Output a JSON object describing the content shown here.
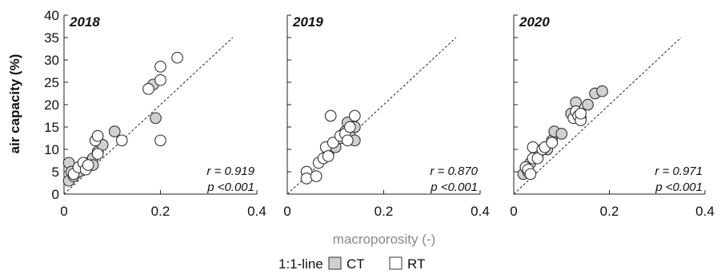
{
  "figure": {
    "ylabel": "air capacity (%)",
    "xlabel": "macroporosity (-)",
    "legend": {
      "line_label": "1:1-line",
      "items": [
        {
          "label": "CT",
          "fill": "#d0d0d0"
        },
        {
          "label": "RT",
          "fill": "#ffffff"
        }
      ]
    }
  },
  "chart_data": [
    {
      "type": "scatter",
      "title": "2018",
      "xlim": [
        0,
        0.4
      ],
      "ylim": [
        0,
        40
      ],
      "xticks": [
        "0",
        "0.2",
        "0.4"
      ],
      "yticks": [
        "0",
        "5",
        "10",
        "15",
        "20",
        "25",
        "30",
        "35",
        "40"
      ],
      "stat_r": "r = 0.919",
      "stat_p": "p <0.001",
      "series": [
        {
          "name": "CT",
          "points": [
            [
              0.01,
              7
            ],
            [
              0.01,
              3
            ],
            [
              0.02,
              4
            ],
            [
              0.015,
              5
            ],
            [
              0.03,
              5
            ],
            [
              0.04,
              6
            ],
            [
              0.05,
              7
            ],
            [
              0.06,
              8
            ],
            [
              0.07,
              9.5
            ],
            [
              0.08,
              11
            ],
            [
              0.105,
              14
            ],
            [
              0.185,
              24.5
            ],
            [
              0.19,
              17
            ],
            [
              0.06,
              6.5
            ]
          ]
        },
        {
          "name": "RT",
          "points": [
            [
              0.02,
              4.5
            ],
            [
              0.03,
              6
            ],
            [
              0.04,
              7
            ],
            [
              0.045,
              5.5
            ],
            [
              0.05,
              6.5
            ],
            [
              0.065,
              12
            ],
            [
              0.07,
              13
            ],
            [
              0.07,
              9
            ],
            [
              0.12,
              12
            ],
            [
              0.175,
              23.5
            ],
            [
              0.2,
              28.5
            ],
            [
              0.2,
              25.5
            ],
            [
              0.2,
              12
            ],
            [
              0.235,
              30.5
            ]
          ]
        }
      ]
    },
    {
      "type": "scatter",
      "title": "2019",
      "xlim": [
        0,
        0.4
      ],
      "ylim": [
        0,
        40
      ],
      "xticks": [
        "0",
        "0.2",
        "0.4"
      ],
      "yticks": [
        "0",
        "5",
        "10",
        "15",
        "20",
        "25",
        "30",
        "35",
        "40"
      ],
      "stat_r": "r = 0.870",
      "stat_p": "p <0.001",
      "series": [
        {
          "name": "CT",
          "points": [
            [
              0.085,
              9
            ],
            [
              0.1,
              10.5
            ],
            [
              0.11,
              12.5
            ],
            [
              0.12,
              14
            ],
            [
              0.125,
              16
            ],
            [
              0.13,
              13
            ],
            [
              0.14,
              15
            ],
            [
              0.14,
              12
            ]
          ]
        },
        {
          "name": "RT",
          "points": [
            [
              0.04,
              5
            ],
            [
              0.04,
              3.5
            ],
            [
              0.06,
              4
            ],
            [
              0.065,
              7
            ],
            [
              0.075,
              8
            ],
            [
              0.08,
              10.5
            ],
            [
              0.085,
              8.5
            ],
            [
              0.09,
              17.5
            ],
            [
              0.095,
              11.5
            ],
            [
              0.11,
              13
            ],
            [
              0.12,
              13.5
            ],
            [
              0.125,
              12
            ],
            [
              0.13,
              15
            ],
            [
              0.14,
              17.5
            ]
          ]
        }
      ]
    },
    {
      "type": "scatter",
      "title": "2020",
      "xlim": [
        0,
        0.4
      ],
      "ylim": [
        0,
        40
      ],
      "xticks": [
        "0",
        "0.2",
        "0.4"
      ],
      "yticks": [
        "0",
        "5",
        "10",
        "15",
        "20",
        "25",
        "30",
        "35",
        "40"
      ],
      "stat_r": "r = 0.971",
      "stat_p": "p <0.001",
      "series": [
        {
          "name": "CT",
          "points": [
            [
              0.02,
              4.5
            ],
            [
              0.025,
              6
            ],
            [
              0.03,
              5
            ],
            [
              0.035,
              7
            ],
            [
              0.05,
              8.5
            ],
            [
              0.07,
              10
            ],
            [
              0.08,
              12
            ],
            [
              0.085,
              14
            ],
            [
              0.1,
              13.5
            ],
            [
              0.12,
              18
            ],
            [
              0.13,
              20.5
            ],
            [
              0.14,
              17
            ],
            [
              0.155,
              20
            ],
            [
              0.17,
              22.5
            ],
            [
              0.185,
              23
            ]
          ]
        },
        {
          "name": "RT",
          "points": [
            [
              0.025,
              6
            ],
            [
              0.03,
              5.5
            ],
            [
              0.035,
              4.5
            ],
            [
              0.04,
              10.5
            ],
            [
              0.04,
              8
            ],
            [
              0.05,
              8
            ],
            [
              0.06,
              10
            ],
            [
              0.065,
              10.5
            ],
            [
              0.08,
              11.5
            ],
            [
              0.125,
              17
            ],
            [
              0.13,
              18.5
            ],
            [
              0.135,
              17.5
            ],
            [
              0.14,
              16.5
            ],
            [
              0.14,
              18
            ]
          ]
        }
      ]
    }
  ]
}
